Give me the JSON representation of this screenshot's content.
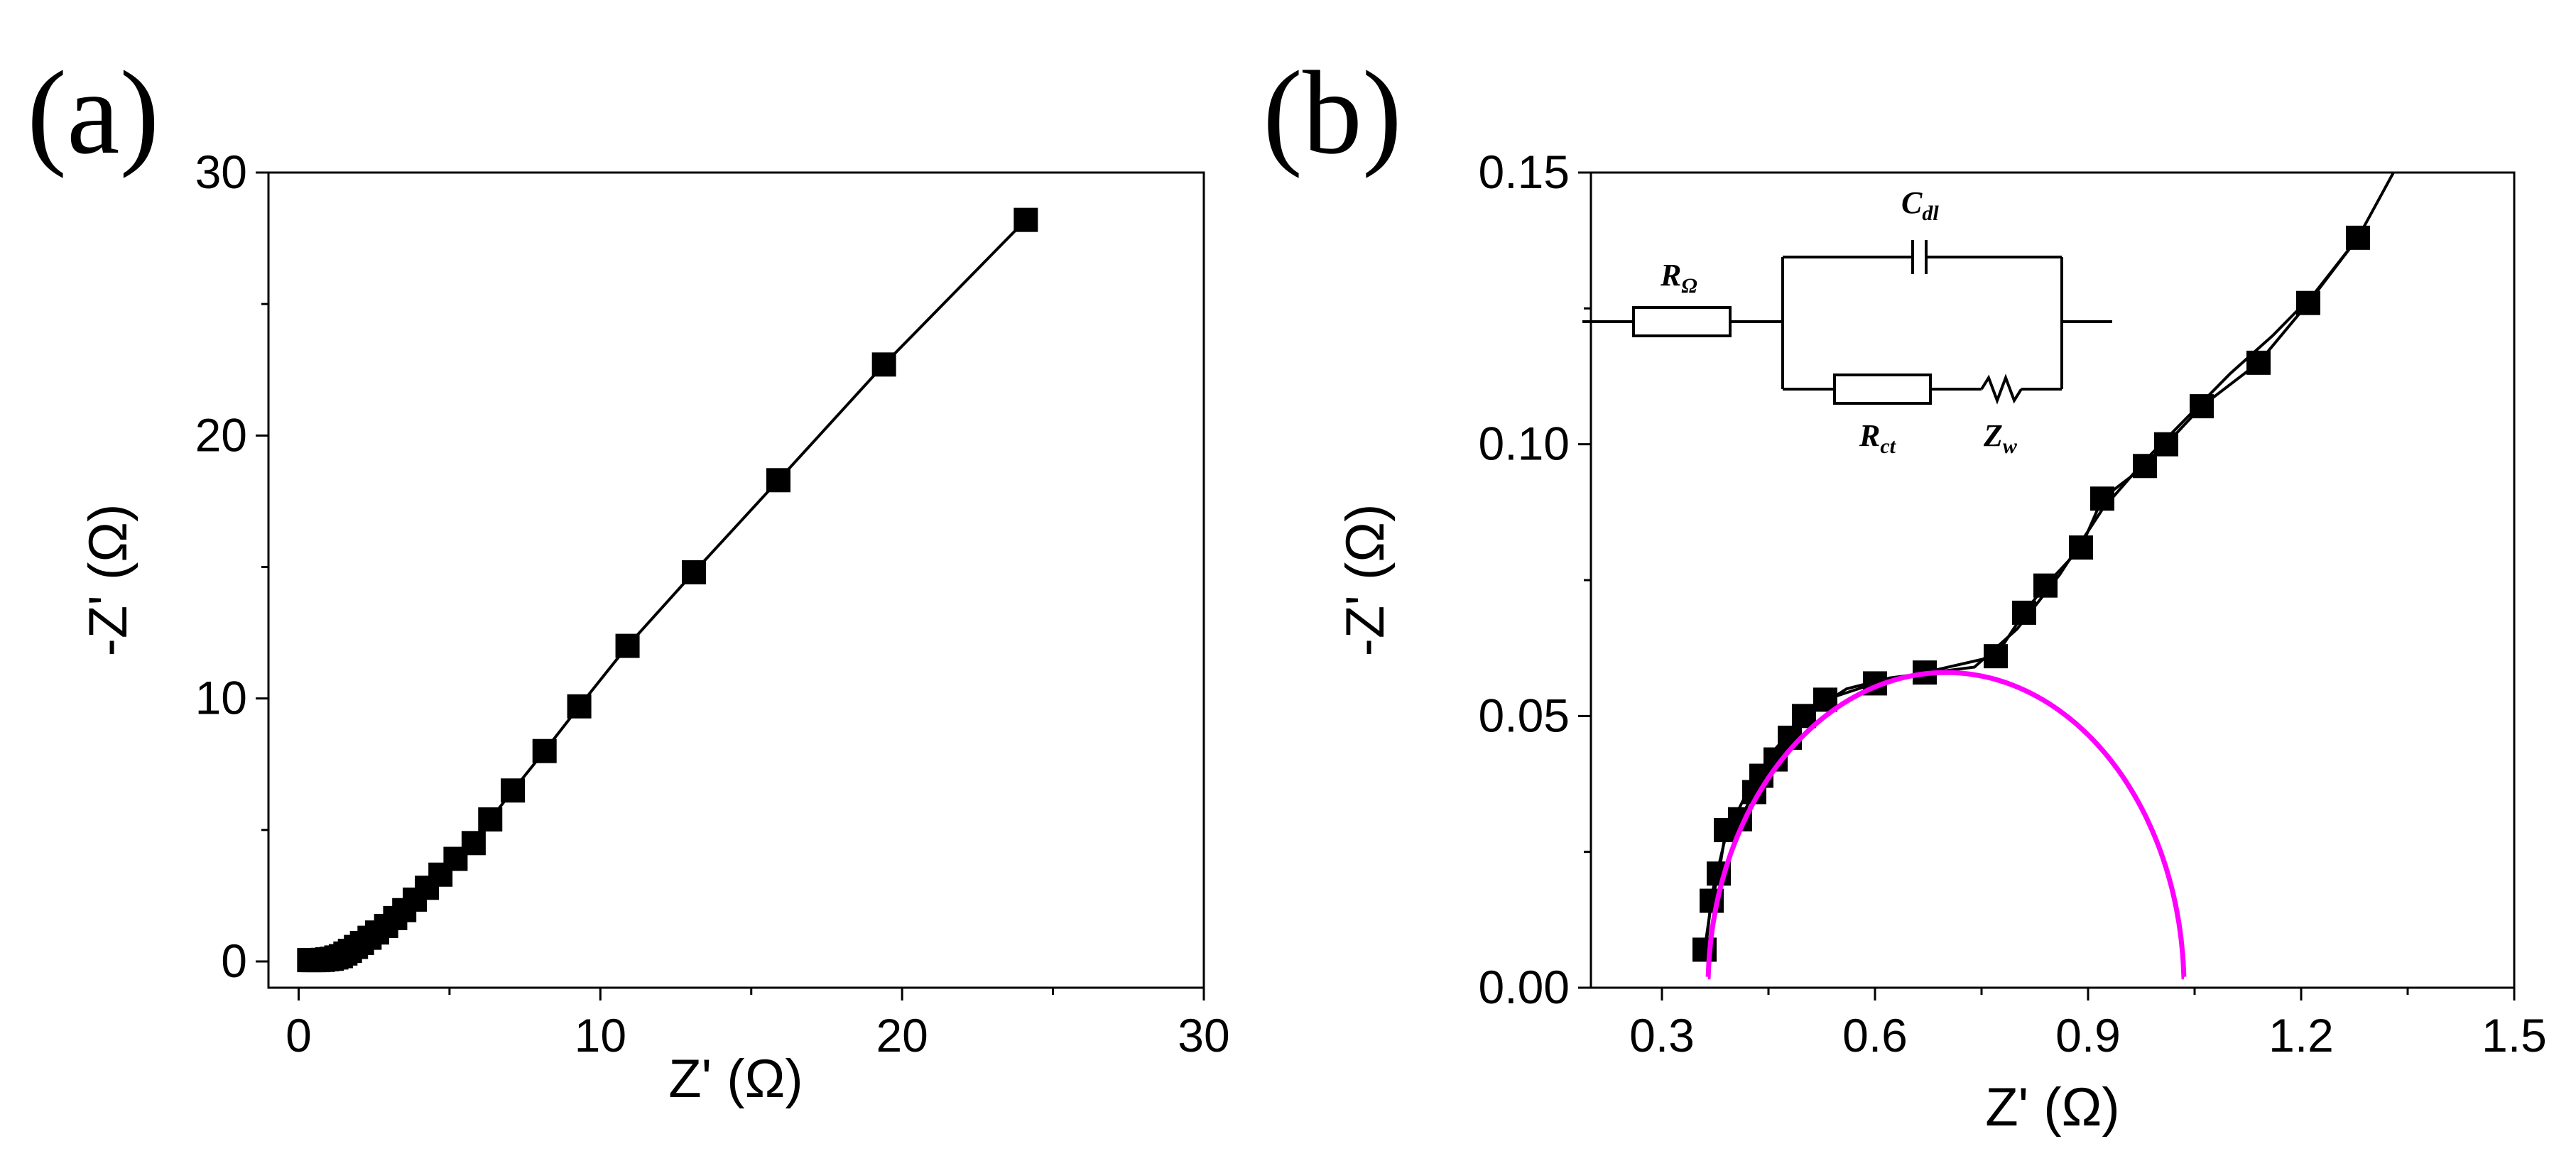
{
  "chart_data": [
    {
      "type": "scatter",
      "panel_label": "(a)",
      "xlabel": "Z' (Ω)",
      "ylabel": "-Z' (Ω)",
      "xlim": [
        -1,
        30
      ],
      "ylim": [
        -1,
        30
      ],
      "x_ticks": [
        0,
        10,
        20,
        30
      ],
      "y_ticks": [
        0,
        10,
        20,
        30
      ],
      "series": [
        {
          "name": "data",
          "marker": "square",
          "line": true,
          "color": "#000000",
          "x": [
            0.35,
            0.5,
            0.65,
            0.8,
            0.95,
            1.1,
            1.25,
            1.4,
            1.55,
            1.7,
            1.9,
            2.1,
            2.35,
            2.6,
            2.9,
            3.2,
            3.5,
            3.85,
            4.25,
            4.7,
            5.2,
            5.8,
            6.35,
            7.1,
            8.15,
            9.3,
            10.9,
            13.1,
            15.9,
            19.4,
            24.1
          ],
          "y": [
            0.05,
            0.05,
            0.05,
            0.06,
            0.08,
            0.1,
            0.15,
            0.2,
            0.3,
            0.4,
            0.55,
            0.7,
            0.9,
            1.1,
            1.35,
            1.65,
            1.95,
            2.35,
            2.8,
            3.3,
            3.9,
            4.5,
            5.4,
            6.5,
            8.0,
            9.7,
            12.0,
            14.8,
            18.3,
            22.7,
            28.2
          ]
        }
      ]
    },
    {
      "type": "scatter",
      "panel_label": "(b)",
      "xlabel": "Z' (Ω)",
      "ylabel": "-Z' (Ω)",
      "xlim": [
        0.2,
        1.5
      ],
      "ylim": [
        0,
        0.15
      ],
      "x_ticks": [
        0.3,
        0.6,
        0.9,
        1.2,
        1.5
      ],
      "x_tick_labels": [
        "0.3",
        "0.6",
        "0.9",
        "1.2",
        "1.5"
      ],
      "y_ticks": [
        0,
        0.05,
        0.1,
        0.15
      ],
      "y_tick_labels": [
        "0.00",
        "0.05",
        "0.10",
        "0.15"
      ],
      "series": [
        {
          "name": "data",
          "marker": "square",
          "line": true,
          "color": "#000000",
          "x": [
            0.36,
            0.37,
            0.38,
            0.39,
            0.41,
            0.43,
            0.44,
            0.46,
            0.48,
            0.5,
            0.53,
            0.6,
            0.67,
            0.77,
            0.81,
            0.84,
            0.89,
            0.92,
            0.98,
            1.01,
            1.06,
            1.14,
            1.21,
            1.28
          ],
          "y": [
            0.007,
            0.016,
            0.021,
            0.029,
            0.031,
            0.036,
            0.039,
            0.042,
            0.046,
            0.05,
            0.053,
            0.056,
            0.058,
            0.061,
            0.069,
            0.074,
            0.081,
            0.09,
            0.096,
            0.1,
            0.107,
            0.115,
            0.126,
            0.138
          ]
        },
        {
          "name": "fit-line",
          "marker": "none",
          "line": true,
          "color": "#000000",
          "x": [
            0.36,
            0.37,
            0.39,
            0.42,
            0.46,
            0.5,
            0.56,
            0.62,
            0.68,
            0.74,
            0.8,
            0.86,
            0.92,
            0.98,
            1.04,
            1.1,
            1.16,
            1.22,
            1.28,
            1.33
          ],
          "y": [
            0.005,
            0.017,
            0.028,
            0.036,
            0.044,
            0.05,
            0.055,
            0.057,
            0.058,
            0.059,
            0.066,
            0.076,
            0.088,
            0.097,
            0.105,
            0.113,
            0.12,
            0.128,
            0.138,
            0.15
          ]
        },
        {
          "name": "semicircle-fit",
          "marker": "none",
          "line": true,
          "color": "#ff00ff",
          "shape": "semicircle",
          "x_start": 0.365,
          "x_end": 1.035,
          "peak": 0.058
        }
      ],
      "inset": {
        "type": "equivalent-circuit",
        "components": [
          {
            "label": "R",
            "subscript": "Ω"
          },
          {
            "label": "C",
            "subscript": "dl"
          },
          {
            "label": "R",
            "subscript": "ct"
          },
          {
            "label": "Z",
            "subscript": "w"
          }
        ]
      }
    }
  ]
}
